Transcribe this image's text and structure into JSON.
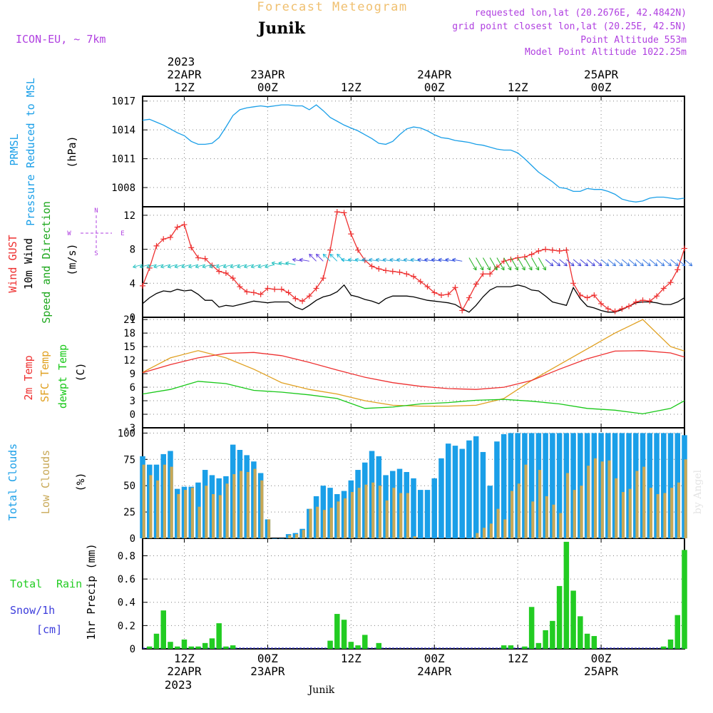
{
  "header": {
    "supertitle": "Forecast Meteogram",
    "location": "Junik",
    "model": "ICON-EU, ~ 7km",
    "info_lines": [
      "requested lon,lat (20.2676E, 42.4842N)",
      "grid point closest lon,lat (20.25E, 42.5N)",
      "Point Altitude 553m",
      "Model Point Altitude 1022.25m"
    ],
    "footer_location": "Junik",
    "watermark": "by Angel"
  },
  "colors": {
    "pressure": "#1a9fe8",
    "gust": "#ee3030",
    "wind": "#000000",
    "direction": "#1ea81e",
    "temp2m": "#ee3030",
    "sfc": "#e0a020",
    "dewpt": "#18c818",
    "total_clouds": "#1a9fe8",
    "low_clouds": "#c8a856",
    "rain": "#22cc22",
    "snow": "#3c3cdc",
    "info": "#b040e0",
    "supertitle": "#f0c070",
    "grid": "#7f7f7f"
  },
  "time_axis": {
    "top_year": "2023",
    "ticks": [
      {
        "date": "22APR",
        "hour": "12Z"
      },
      {
        "date": "23APR",
        "hour": "00Z"
      },
      {
        "date": "",
        "hour": "12Z"
      },
      {
        "date": "24APR",
        "hour": "00Z"
      },
      {
        "date": "",
        "hour": "12Z"
      },
      {
        "date": "25APR",
        "hour": "00Z"
      }
    ],
    "bottom_ticks": [
      {
        "hour": "12Z",
        "date": "22APR"
      },
      {
        "hour": "00Z",
        "date": "23APR"
      },
      {
        "hour": "12Z",
        "date": ""
      },
      {
        "hour": "00Z",
        "date": "24APR"
      },
      {
        "hour": "12Z",
        "date": ""
      },
      {
        "hour": "00Z",
        "date": "25APR"
      }
    ],
    "bottom_year": "2023"
  },
  "panels": {
    "pressure": {
      "label1": "PRMSL",
      "label2": "Pressure Reduced to MSL",
      "unit": "(hPa)",
      "ticks": [
        "1017",
        "1014",
        "1011",
        "1008"
      ]
    },
    "wind": {
      "label_gust": "Wind GUST",
      "label_wind": "10m Wind",
      "label_dir": "Speed and Direction",
      "unit": "(m/s)",
      "ticks": [
        "12",
        "8",
        "4",
        "0"
      ],
      "compass": {
        "n": "N",
        "s": "S",
        "w": "W",
        "e": "E"
      }
    },
    "temp": {
      "label1": "2m Temp",
      "label2": "SFC Temp",
      "label3": "dewpt Temp",
      "unit": "(C)",
      "ticks": [
        "21",
        "18",
        "15",
        "12",
        "9",
        "6",
        "3",
        "0",
        "-3"
      ]
    },
    "clouds": {
      "label1": "Total Clouds",
      "label2": "Low Clouds",
      "unit": "(%)",
      "ticks": [
        "100",
        "75",
        "50",
        "25",
        "0"
      ]
    },
    "precip": {
      "label_rain1": "Total",
      "label_rain2": "Rain",
      "label_snow": "Snow/1h",
      "label_cm": "[cm]",
      "unit": "1hr Precip (mm)",
      "ticks": [
        "0.8",
        "0.6",
        "0.4",
        "0.2",
        "0"
      ]
    }
  },
  "chart_data": {
    "type": "line",
    "x_unit": "hours since 22APR2023 00Z",
    "x_range": [
      6,
      84
    ],
    "pressure": {
      "name": "PRMSL",
      "ylim": [
        1006,
        1017.5
      ],
      "x": [
        6,
        7,
        8,
        9,
        10,
        11,
        12,
        13,
        14,
        15,
        16,
        17,
        18,
        19,
        20,
        21,
        22,
        23,
        24,
        25,
        26,
        27,
        28,
        29,
        30,
        31,
        32,
        33,
        34,
        35,
        36,
        37,
        38,
        39,
        40,
        41,
        42,
        43,
        44,
        45,
        46,
        47,
        48,
        49,
        50,
        51,
        52,
        53,
        54,
        55,
        56,
        57,
        58,
        59,
        60,
        61,
        62,
        63,
        64,
        65,
        66,
        67,
        68,
        69,
        70,
        71,
        72,
        73,
        74,
        75,
        76,
        77,
        78,
        79,
        80,
        81,
        82,
        83,
        84
      ],
      "y": [
        1015.0,
        1015.1,
        1014.8,
        1014.5,
        1014.1,
        1013.7,
        1013.4,
        1012.8,
        1012.5,
        1012.5,
        1012.6,
        1013.2,
        1014.3,
        1015.5,
        1016.1,
        1016.3,
        1016.4,
        1016.5,
        1016.4,
        1016.5,
        1016.6,
        1016.6,
        1016.5,
        1016.5,
        1016.1,
        1016.6,
        1016.0,
        1015.3,
        1014.9,
        1014.5,
        1014.2,
        1013.9,
        1013.5,
        1013.1,
        1012.6,
        1012.5,
        1012.8,
        1013.5,
        1014.1,
        1014.3,
        1014.2,
        1013.9,
        1013.5,
        1013.2,
        1013.1,
        1012.9,
        1012.8,
        1012.7,
        1012.5,
        1012.4,
        1012.2,
        1012.0,
        1011.9,
        1011.9,
        1011.6,
        1011.0,
        1010.3,
        1009.6,
        1009.1,
        1008.6,
        1008.0,
        1007.9,
        1007.6,
        1007.6,
        1007.9,
        1007.8,
        1007.8,
        1007.6,
        1007.3,
        1006.8,
        1006.6,
        1006.5,
        1006.6,
        1006.9,
        1007.0,
        1007.0,
        1006.9,
        1006.8,
        1006.9
      ]
    },
    "wind": {
      "ylim": [
        0,
        13
      ],
      "gust": {
        "name": "Wind GUST",
        "x": [
          6,
          7,
          8,
          9,
          10,
          11,
          12,
          13,
          14,
          15,
          16,
          17,
          18,
          19,
          20,
          21,
          22,
          23,
          24,
          25,
          26,
          27,
          28,
          29,
          30,
          31,
          32,
          33,
          34,
          35,
          36,
          37,
          38,
          39,
          40,
          41,
          42,
          43,
          44,
          45,
          46,
          47,
          48,
          49,
          50,
          51,
          52,
          53,
          54,
          55,
          56,
          57,
          58,
          59,
          60,
          61,
          62,
          63,
          64,
          65,
          66,
          67,
          68,
          69,
          70,
          71,
          72,
          73,
          74,
          75,
          76,
          77,
          78,
          79,
          80,
          81,
          82,
          83,
          84
        ],
        "y": [
          3.7,
          5.8,
          8.4,
          9.2,
          9.4,
          10.6,
          10.9,
          8.2,
          7.0,
          6.9,
          6.1,
          5.4,
          5.2,
          4.6,
          3.6,
          3.0,
          2.9,
          2.7,
          3.4,
          3.3,
          3.3,
          2.9,
          2.2,
          1.9,
          2.5,
          3.4,
          4.6,
          7.9,
          12.4,
          12.3,
          9.8,
          7.9,
          6.7,
          6.0,
          5.7,
          5.5,
          5.4,
          5.3,
          5.1,
          4.8,
          4.2,
          3.6,
          2.9,
          2.6,
          2.7,
          3.5,
          0.8,
          2.3,
          3.9,
          5.1,
          5.1,
          5.9,
          6.6,
          6.8,
          7.0,
          7.1,
          7.4,
          7.8,
          8.0,
          7.9,
          7.8,
          7.9,
          4.0,
          2.6,
          2.3,
          2.6,
          1.6,
          1.0,
          0.7,
          1.0,
          1.3,
          1.8,
          2.0,
          1.9,
          2.5,
          3.4,
          4.1,
          5.6,
          8.1
        ]
      },
      "wind10m": {
        "name": "10m Wind",
        "x": [
          6,
          7,
          8,
          9,
          10,
          11,
          12,
          13,
          14,
          15,
          16,
          17,
          18,
          19,
          20,
          21,
          22,
          23,
          24,
          25,
          26,
          27,
          28,
          29,
          30,
          31,
          32,
          33,
          34,
          35,
          36,
          37,
          38,
          39,
          40,
          41,
          42,
          43,
          44,
          45,
          46,
          47,
          48,
          49,
          50,
          51,
          52,
          53,
          54,
          55,
          56,
          57,
          58,
          59,
          60,
          61,
          62,
          63,
          64,
          65,
          66,
          67,
          68,
          69,
          70,
          71,
          72,
          73,
          74,
          75,
          76,
          77,
          78,
          79,
          80,
          81,
          82,
          83,
          84
        ],
        "y": [
          1.6,
          2.3,
          2.8,
          3.1,
          3.0,
          3.3,
          3.1,
          3.2,
          2.7,
          2.0,
          2.0,
          1.2,
          1.4,
          1.3,
          1.5,
          1.7,
          1.9,
          1.8,
          1.7,
          1.8,
          1.8,
          1.8,
          1.2,
          0.9,
          1.4,
          2.0,
          2.4,
          2.6,
          3.0,
          3.8,
          2.6,
          2.4,
          2.1,
          1.9,
          1.6,
          2.2,
          2.5,
          2.5,
          2.5,
          2.4,
          2.2,
          2.0,
          1.9,
          1.8,
          1.7,
          1.5,
          1.0,
          0.6,
          1.4,
          2.4,
          3.2,
          3.6,
          3.6,
          3.6,
          3.8,
          3.6,
          3.2,
          3.1,
          2.5,
          1.8,
          1.6,
          1.4,
          3.5,
          2.2,
          1.3,
          1.1,
          0.8,
          0.6,
          0.6,
          0.9,
          1.3,
          1.7,
          1.8,
          1.8,
          1.7,
          1.5,
          1.5,
          1.8,
          2.3
        ]
      }
    },
    "temperature": {
      "ylim": [
        -3,
        21.5
      ],
      "t2m": {
        "name": "2m Temp",
        "x": [
          6,
          10,
          14,
          18,
          22,
          26,
          30,
          34,
          38,
          42,
          46,
          50,
          54,
          58,
          62,
          66,
          70,
          74,
          78,
          82,
          84
        ],
        "y": [
          9.2,
          11.0,
          12.5,
          13.5,
          13.7,
          13.0,
          11.5,
          9.8,
          8.2,
          7.0,
          6.2,
          5.7,
          5.5,
          6.0,
          7.5,
          10.0,
          12.3,
          14.0,
          14.1,
          13.6,
          12.7
        ]
      },
      "sfc": {
        "name": "SFC Temp",
        "x": [
          6,
          10,
          14,
          18,
          22,
          26,
          30,
          34,
          38,
          42,
          46,
          50,
          54,
          58,
          62,
          66,
          70,
          74,
          78,
          82,
          84
        ],
        "y": [
          9.3,
          12.5,
          14.1,
          12.5,
          10.0,
          7.0,
          5.5,
          4.5,
          3.0,
          2.0,
          1.8,
          1.8,
          2.0,
          3.5,
          7.5,
          11.0,
          14.5,
          18.0,
          21.0,
          15.0,
          14.0
        ]
      },
      "dewpt": {
        "name": "dewpt Temp",
        "x": [
          6,
          10,
          14,
          18,
          22,
          26,
          30,
          34,
          38,
          42,
          46,
          50,
          54,
          58,
          62,
          66,
          70,
          74,
          78,
          82,
          84
        ],
        "y": [
          4.5,
          5.5,
          7.3,
          6.8,
          5.3,
          4.9,
          4.3,
          3.5,
          1.3,
          1.6,
          2.3,
          2.6,
          3.1,
          3.3,
          2.9,
          2.3,
          1.3,
          0.9,
          0.1,
          1.3,
          3.0
        ]
      }
    },
    "clouds": {
      "ylim": [
        0,
        105
      ],
      "total": {
        "name": "Total Clouds",
        "x": [
          6,
          7,
          8,
          9,
          10,
          11,
          12,
          13,
          14,
          15,
          16,
          17,
          18,
          19,
          20,
          21,
          22,
          23,
          24,
          25,
          26,
          27,
          28,
          29,
          30,
          31,
          32,
          33,
          34,
          35,
          36,
          37,
          38,
          39,
          40,
          41,
          42,
          43,
          44,
          45,
          46,
          47,
          48,
          49,
          50,
          51,
          52,
          53,
          54,
          55,
          56,
          57,
          58,
          59,
          60,
          61,
          62,
          63,
          64,
          65,
          66,
          67,
          68,
          69,
          70,
          71,
          72,
          73,
          74,
          75,
          76,
          77,
          78,
          79,
          80,
          81,
          82,
          83,
          84
        ],
        "y": [
          78,
          70,
          70,
          80,
          83,
          47,
          49,
          49,
          53,
          65,
          60,
          57,
          59,
          89,
          84,
          79,
          73,
          62,
          18,
          0,
          0,
          4,
          5,
          9,
          28,
          40,
          50,
          48,
          42,
          45,
          55,
          65,
          72,
          83,
          78,
          60,
          64,
          66,
          63,
          57,
          46,
          46,
          57,
          76,
          90,
          88,
          85,
          93,
          97,
          82,
          50,
          92,
          99,
          100,
          100,
          100,
          100,
          100,
          100,
          100,
          100,
          100,
          100,
          100,
          100,
          100,
          100,
          100,
          100,
          100,
          100,
          100,
          100,
          100,
          100,
          100,
          100,
          100,
          98
        ]
      },
      "low": {
        "name": "Low Clouds",
        "x": [
          6,
          7,
          8,
          9,
          10,
          11,
          12,
          13,
          14,
          15,
          16,
          17,
          18,
          19,
          20,
          21,
          22,
          23,
          24,
          25,
          26,
          27,
          28,
          29,
          30,
          31,
          32,
          33,
          34,
          35,
          36,
          37,
          38,
          39,
          40,
          41,
          42,
          43,
          44,
          45,
          46,
          47,
          48,
          49,
          50,
          51,
          52,
          53,
          54,
          55,
          56,
          57,
          58,
          59,
          60,
          61,
          62,
          63,
          64,
          65,
          66,
          67,
          68,
          69,
          70,
          71,
          72,
          73,
          74,
          75,
          76,
          77,
          78,
          79,
          80,
          81,
          82,
          83,
          84
        ],
        "y": [
          70,
          60,
          55,
          70,
          68,
          42,
          46,
          48,
          30,
          50,
          42,
          41,
          52,
          61,
          64,
          63,
          66,
          55,
          18,
          0,
          0,
          3,
          4,
          8,
          28,
          30,
          27,
          29,
          35,
          38,
          44,
          48,
          51,
          53,
          50,
          36,
          48,
          43,
          43,
          2,
          0,
          0,
          0,
          0,
          0,
          0,
          0,
          0,
          5,
          10,
          14,
          28,
          18,
          45,
          52,
          70,
          35,
          65,
          40,
          32,
          24,
          62,
          46,
          50,
          69,
          76,
          73,
          74,
          57,
          44,
          47,
          64,
          68,
          48,
          42,
          43,
          48,
          53,
          75
        ]
      }
    },
    "precip": {
      "ylim": [
        0,
        0.95
      ],
      "rain": {
        "name": "Total Rain",
        "x": [
          6,
          7,
          8,
          9,
          10,
          11,
          12,
          13,
          14,
          15,
          16,
          17,
          18,
          19,
          20,
          21,
          22,
          23,
          24,
          25,
          26,
          27,
          28,
          29,
          30,
          31,
          32,
          33,
          34,
          35,
          36,
          37,
          38,
          39,
          40,
          41,
          42,
          43,
          44,
          45,
          46,
          47,
          48,
          49,
          50,
          51,
          52,
          53,
          54,
          55,
          56,
          57,
          58,
          59,
          60,
          61,
          62,
          63,
          64,
          65,
          66,
          67,
          68,
          69,
          70,
          71,
          72,
          73,
          74,
          75,
          76,
          77,
          78,
          79,
          80,
          81,
          82,
          83,
          84
        ],
        "y": [
          0,
          0.02,
          0.13,
          0.33,
          0.06,
          0.02,
          0.08,
          0.02,
          0.02,
          0.05,
          0.09,
          0.22,
          0.02,
          0.03,
          0,
          0,
          0,
          0,
          0,
          0,
          0,
          0,
          0,
          0,
          0,
          0,
          0,
          0.07,
          0.3,
          0.25,
          0.06,
          0.03,
          0.12,
          0,
          0.05,
          0,
          0,
          0,
          0,
          0,
          0,
          0,
          0,
          0,
          0,
          0,
          0,
          0,
          0,
          0,
          0,
          0,
          0.03,
          0.03,
          0,
          0.02,
          0.36,
          0.05,
          0.16,
          0.24,
          0.54,
          0.92,
          0.5,
          0.28,
          0.13,
          0.11,
          0,
          0,
          0,
          0,
          0,
          0,
          0,
          0,
          0,
          0.02,
          0.08,
          0.29,
          0.85
        ]
      },
      "snow": {
        "name": "Snow/1h",
        "y_all_zero": true
      }
    }
  }
}
